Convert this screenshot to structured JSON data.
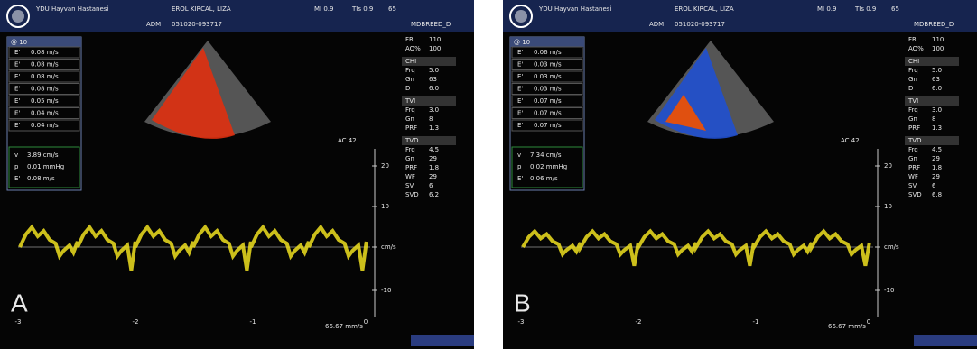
{
  "panels": [
    {
      "letter": "A",
      "header": {
        "hospital": "YDU Hayvan Hastanesi",
        "patient": "EROL KIRCAL, LIZA",
        "mi": "MI 0.9",
        "tis": "TIs 0.9",
        "index": "65",
        "adm": "ADM",
        "id": "051020-093717",
        "preset": "MDBREED_D"
      },
      "measure": {
        "title": "@ 10",
        "rows": [
          [
            "E'",
            "0.08 m/s"
          ],
          [
            "E'",
            "0.08 m/s"
          ],
          [
            "E'",
            "0.08 m/s"
          ],
          [
            "E'",
            "0.08 m/s"
          ],
          [
            "E'",
            "0.05 m/s"
          ],
          [
            "E'",
            "0.04 m/s"
          ],
          [
            "E'",
            "0.04 m/s"
          ]
        ],
        "result": [
          [
            "v",
            "3.89 cm/s"
          ],
          [
            "p",
            "0.01 mmHg"
          ],
          [
            "E'",
            "0.08 m/s"
          ]
        ]
      },
      "settings": [
        [
          "FR",
          "110"
        ],
        [
          "AO%",
          "100"
        ],
        [
          "CHI"
        ],
        [
          "Frq",
          "5.0"
        ],
        [
          "Gn",
          "63"
        ],
        [
          "D",
          "6.0"
        ],
        [
          "TVI"
        ],
        [
          "Frq",
          "3.0"
        ],
        [
          "Gn",
          "8"
        ],
        [
          "PRF",
          "1.3"
        ],
        [
          "TVD"
        ],
        [
          "Frq",
          "4.5"
        ],
        [
          "Gn",
          "29"
        ],
        [
          "PRF",
          "1.8"
        ],
        [
          "WF",
          "29"
        ],
        [
          "SV",
          "6"
        ],
        [
          "SVD",
          "6.2"
        ]
      ],
      "ac": "AC 42",
      "yticks": [
        "20",
        "10",
        "cm/s",
        "-10"
      ],
      "xticks": [
        "-3",
        "-2",
        "-1",
        "0"
      ],
      "speed": "66.67 mm/s"
    },
    {
      "letter": "B",
      "header": {
        "hospital": "YDU Hayvan Hastanesi",
        "patient": "EROL KIRCAL, LIZA",
        "mi": "MI 0.9",
        "tis": "TIs 0.9",
        "index": "65",
        "adm": "ADM",
        "id": "051020-093717",
        "preset": "MDBREED_D"
      },
      "measure": {
        "title": "@ 10",
        "rows": [
          [
            "E'",
            "0.06 m/s"
          ],
          [
            "E'",
            "0.03 m/s"
          ],
          [
            "E'",
            "0.03 m/s"
          ],
          [
            "E'",
            "0.03 m/s"
          ],
          [
            "E'",
            "0.07 m/s"
          ],
          [
            "E'",
            "0.07 m/s"
          ],
          [
            "E'",
            "0.07 m/s"
          ]
        ],
        "result": [
          [
            "v",
            "7.34 cm/s"
          ],
          [
            "p",
            "0.02 mmHg"
          ],
          [
            "E'",
            "0.06 m/s"
          ]
        ]
      },
      "settings": [
        [
          "FR",
          "110"
        ],
        [
          "AO%",
          "100"
        ],
        [
          "CHI"
        ],
        [
          "Frq",
          "5.0"
        ],
        [
          "Gn",
          "63"
        ],
        [
          "D",
          "6.0"
        ],
        [
          "TVI"
        ],
        [
          "Frq",
          "3.0"
        ],
        [
          "Gn",
          "8"
        ],
        [
          "PRF",
          "1.3"
        ],
        [
          "TVD"
        ],
        [
          "Frq",
          "4.5"
        ],
        [
          "Gn",
          "29"
        ],
        [
          "PRF",
          "1.8"
        ],
        [
          "WF",
          "29"
        ],
        [
          "SV",
          "6"
        ],
        [
          "SVD",
          "6.8"
        ]
      ],
      "ac": "AC 42",
      "yticks": [
        "20",
        "10",
        "cm/s",
        "-10"
      ],
      "xticks": [
        "-3",
        "-2",
        "-1",
        "0"
      ],
      "speed": "66.67 mm/s"
    }
  ]
}
